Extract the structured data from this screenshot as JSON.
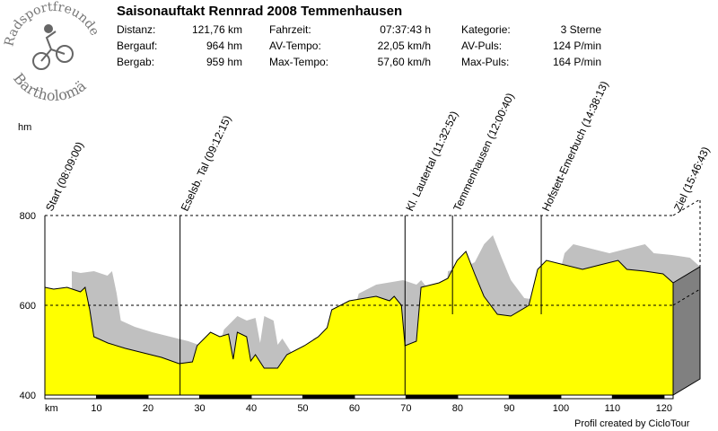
{
  "title": "Saisonauftakt Rennrad 2008 Temmenhausen",
  "logo": {
    "text_top": "Radsportfreunde",
    "text_bottom": "Bartholomä"
  },
  "stats": [
    {
      "label": "Distanz:",
      "value": "121,76 km"
    },
    {
      "label": "Bergauf:",
      "value": "964 hm"
    },
    {
      "label": "Bergab:",
      "value": "959 hm"
    },
    {
      "label": "Fahrzeit:",
      "value": "07:37:43 h"
    },
    {
      "label": "AV-Tempo:",
      "value": "22,05 km/h"
    },
    {
      "label": "Max-Tempo:",
      "value": "57,60 km/h"
    },
    {
      "label": "Kategorie:",
      "value": "3 Sterne"
    },
    {
      "label": "AV-Puls:",
      "value": "124 P/min"
    },
    {
      "label": "Max-Puls:",
      "value": "164 P/min"
    }
  ],
  "footer": "Profil created by CicloTour",
  "colors": {
    "fill": "#ffff00",
    "shadow": "#c0c0c0",
    "wall": "#808080"
  },
  "chart_data": {
    "type": "area",
    "title": "Saisonauftakt Rennrad 2008 Temmenhausen",
    "xlabel": "km",
    "ylabel": "hm",
    "xlim": [
      0,
      121.76
    ],
    "ylim": [
      400,
      800
    ],
    "xticks": [
      10,
      20,
      30,
      40,
      50,
      60,
      70,
      80,
      90,
      100,
      110,
      120
    ],
    "yticks": [
      400,
      600,
      800
    ],
    "grid": "dashed at 600 and 800",
    "x": [
      0,
      1.7,
      4.3,
      6.9,
      7.8,
      8.7,
      9.5,
      12.2,
      15.6,
      19.1,
      22.6,
      26.0,
      28.6,
      29.5,
      32.1,
      33.9,
      35.6,
      36.5,
      37.3,
      39.1,
      39.9,
      40.8,
      42.5,
      45.1,
      46.9,
      50.3,
      53.0,
      54.7,
      55.6,
      59.0,
      64.2,
      66.8,
      67.7,
      69.1,
      69.8,
      72.0,
      72.9,
      76.4,
      78.1,
      79.9,
      81.6,
      83.3,
      85.1,
      87.7,
      90.3,
      93.8,
      95.5,
      97.2,
      100.7,
      104.2,
      107.6,
      111.1,
      112.8,
      116.3,
      119.8,
      121.76
    ],
    "y": [
      640,
      636,
      640,
      630,
      640,
      590,
      530,
      516,
      504,
      494,
      484,
      470,
      474,
      510,
      540,
      530,
      536,
      480,
      540,
      530,
      476,
      490,
      460,
      460,
      490,
      510,
      530,
      550,
      590,
      610,
      620,
      610,
      620,
      600,
      510,
      520,
      640,
      650,
      660,
      700,
      720,
      670,
      620,
      580,
      576,
      600,
      680,
      700,
      690,
      680,
      690,
      700,
      680,
      676,
      670,
      650
    ],
    "waypoints": [
      {
        "km": 0,
        "label": "Start (08:09:00)"
      },
      {
        "km": 26.2,
        "label": "Eselsb. Tal (09:12:15)"
      },
      {
        "km": 69.8,
        "label": "Kl. Lautertal (11:32:52)"
      },
      {
        "km": 79.0,
        "label": "Temmenhausen (12:00:40)"
      },
      {
        "km": 96.2,
        "label": "Hofstett-Emerbuch (14:38:13)"
      },
      {
        "km": 121.76,
        "label": "Ziel (15:46:43)"
      }
    ]
  }
}
